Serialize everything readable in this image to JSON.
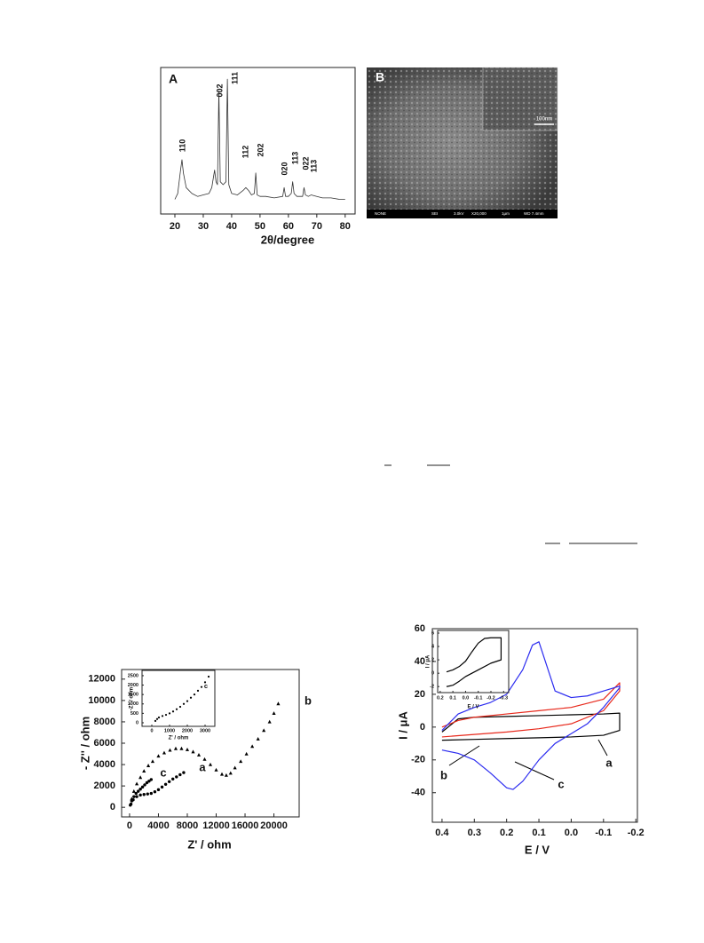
{
  "chart_data": [
    {
      "type": "line",
      "panel_label": "A",
      "xlabel": "2θ/degree",
      "xlim": [
        15,
        83.5
      ],
      "xticks": [
        20,
        30,
        40,
        50,
        60,
        70,
        80
      ],
      "ylim": [
        0,
        100
      ],
      "annotations": [
        "110",
        "002",
        "111",
        "112",
        "202",
        "020",
        "113",
        "022",
        "113"
      ],
      "series": [
        {
          "color": "#333333",
          "x": [
            20,
            21,
            22,
            22.5,
            23,
            24,
            26,
            28,
            30,
            32,
            33,
            34,
            34.5,
            35,
            35.5,
            36,
            37,
            38,
            38.5,
            39,
            40,
            42,
            44,
            45,
            46,
            47,
            48,
            48.5,
            49,
            50,
            52,
            55,
            58,
            58.5,
            59,
            60,
            61,
            61.5,
            62,
            63,
            65,
            65.5,
            66,
            67,
            68,
            70,
            72,
            75,
            78,
            80
          ],
          "values": [
            10,
            14,
            30,
            37,
            28,
            18,
            14,
            12,
            13,
            14,
            18,
            30,
            22,
            20,
            84,
            22,
            20,
            22,
            92,
            20,
            14,
            13,
            16,
            18,
            16,
            13,
            14,
            28,
            13,
            12,
            12,
            11,
            12,
            18,
            12,
            12,
            14,
            22,
            14,
            12,
            12,
            18,
            13,
            12,
            13,
            12,
            11,
            11,
            10,
            10
          ]
        }
      ]
    },
    {
      "type": "scatter",
      "xlabel": "Z' / ohm",
      "ylabel": "- Z'' / ohm",
      "xlim": [
        -1100,
        23500
      ],
      "ylim": [
        -900,
        12900
      ],
      "xticks": [
        0,
        4000,
        8000,
        12000,
        16000,
        20000
      ],
      "yticks": [
        0,
        2000,
        4000,
        6000,
        8000,
        10000,
        12000
      ],
      "series": [
        {
          "name": "a",
          "marker": "circle",
          "color": "#000000",
          "x": [
            200,
            500,
            1000,
            1500,
            2000,
            2500,
            3000,
            3500,
            4000,
            4500,
            5000,
            5500,
            6000,
            6500,
            7000,
            7500
          ],
          "values": [
            300,
            700,
            1000,
            1150,
            1200,
            1250,
            1300,
            1450,
            1650,
            1900,
            2150,
            2400,
            2650,
            2850,
            3050,
            3250
          ]
        },
        {
          "name": "b",
          "marker": "triangle",
          "color": "#000000",
          "x": [
            300,
            600,
            1000,
            1500,
            2000,
            2600,
            3200,
            4000,
            4800,
            5600,
            6400,
            7200,
            8000,
            8800,
            9600,
            10400,
            11200,
            12000,
            12800,
            13400,
            14000,
            14600,
            15400,
            16200,
            17000,
            17800,
            18600,
            19400,
            20000,
            20600
          ],
          "values": [
            800,
            1500,
            2200,
            2800,
            3400,
            3900,
            4300,
            4800,
            5100,
            5350,
            5500,
            5500,
            5400,
            5200,
            4900,
            4500,
            4000,
            3500,
            3100,
            3000,
            3200,
            3700,
            4300,
            5000,
            5700,
            6400,
            7200,
            8000,
            8800,
            9700
          ]
        },
        {
          "name": "c",
          "marker": "circle",
          "color": "#000000",
          "x": [
            100,
            300,
            600,
            900,
            1200,
            1500,
            1800,
            2100,
            2400,
            2700,
            3000
          ],
          "values": [
            200,
            600,
            1000,
            1300,
            1500,
            1700,
            1900,
            2100,
            2300,
            2450,
            2600
          ]
        }
      ]
    },
    {
      "type": "scatter",
      "xlabel": "Z' / ohm",
      "ylabel": "-Z'' / ohm",
      "xlim": [
        -550,
        3550
      ],
      "ylim": [
        -190,
        2780
      ],
      "xticks": [
        0,
        1000,
        2000,
        3000
      ],
      "yticks": [
        0,
        500,
        1000,
        1500,
        2000,
        2500
      ],
      "series": [
        {
          "name": "c",
          "marker": "circle",
          "color": "#000000",
          "x": [
            200,
            300,
            400,
            600,
            800,
            1000,
            1200,
            1400,
            1600,
            1800,
            2000,
            2200,
            2400,
            2600,
            2800,
            3000,
            3200
          ],
          "values": [
            100,
            200,
            280,
            360,
            420,
            500,
            600,
            720,
            850,
            1000,
            1150,
            1330,
            1500,
            1700,
            1900,
            2150,
            2450
          ]
        }
      ]
    },
    {
      "type": "line",
      "xlabel": "E / V",
      "ylabel": "I / μA",
      "xlim": [
        0.43,
        -0.205
      ],
      "ylim": [
        -58,
        60
      ],
      "xticks": [
        0.4,
        0.3,
        0.2,
        0.1,
        {
          "value": 0,
          "label": "0.0"
        },
        -0.1,
        -0.2
      ],
      "yticks": [
        60,
        40,
        20,
        0,
        -20,
        -40
      ],
      "series": [
        {
          "name": "a",
          "color": "#000000",
          "x": [
            0.4,
            0.35,
            0.3,
            0.2,
            0.1,
            0,
            -0.1,
            -0.15,
            -0.15,
            -0.1,
            0,
            0.1,
            0.2,
            0.3,
            0.4
          ],
          "values": [
            -3,
            5,
            6,
            6.5,
            7,
            7.5,
            8,
            8.5,
            -2,
            -5,
            -6,
            -6.5,
            -7,
            -7.5,
            -8
          ]
        },
        {
          "name": "b",
          "color": "#e8291c",
          "x": [
            0.4,
            0.35,
            0.3,
            0.2,
            0.1,
            0,
            -0.1,
            -0.15,
            -0.15,
            -0.1,
            0,
            0.1,
            0.2,
            0.3,
            0.4
          ],
          "values": [
            0,
            4,
            6,
            8,
            10,
            12,
            17,
            27,
            22,
            10,
            2,
            -1,
            -3,
            -4.5,
            -6
          ]
        },
        {
          "name": "c",
          "color": "#2b2bf0",
          "x": [
            0.4,
            0.35,
            0.3,
            0.25,
            0.2,
            0.15,
            0.12,
            0.1,
            0.08,
            0.05,
            0,
            -0.05,
            -0.1,
            -0.15,
            -0.15,
            -0.1,
            -0.05,
            0,
            0.05,
            0.1,
            0.15,
            0.18,
            0.2,
            0.25,
            0.3,
            0.35,
            0.4
          ],
          "values": [
            -2,
            8,
            12,
            15,
            20,
            35,
            50,
            52,
            40,
            22,
            18,
            19,
            22,
            25,
            24,
            12,
            2,
            -4,
            -10,
            -20,
            -33,
            -38,
            -37,
            -28,
            -20,
            -16,
            -14
          ]
        }
      ]
    },
    {
      "type": "line",
      "xlabel": "E / V",
      "ylabel": "I / μA",
      "xlim": [
        0.22,
        -0.34
      ],
      "ylim": [
        -2.9,
        6.4
      ],
      "xticks": [
        0.2,
        0.1,
        {
          "value": 0,
          "label": "0.0"
        },
        -0.1,
        -0.2,
        -0.3
      ],
      "yticks": [
        6,
        4,
        2,
        0,
        -2
      ],
      "series": [
        {
          "color": "#000000",
          "x": [
            0.15,
            0.1,
            0.05,
            0,
            -0.05,
            -0.1,
            -0.15,
            -0.2,
            -0.28,
            -0.28,
            -0.2,
            -0.1,
            0,
            0.05,
            0.1,
            0.15
          ],
          "values": [
            0.2,
            0.5,
            1,
            1.8,
            3.2,
            4.5,
            5.2,
            5.3,
            5.3,
            2,
            1.5,
            0.5,
            -0.5,
            -1.2,
            -1.8,
            -2
          ]
        }
      ]
    }
  ],
  "figure_b": {
    "panel_label": "B",
    "scale_label": "100nm",
    "info_bar": [
      "NONE",
      "SEI",
      "3.0kV",
      "X20,000",
      "1μm",
      "WD 7.4mm"
    ]
  }
}
